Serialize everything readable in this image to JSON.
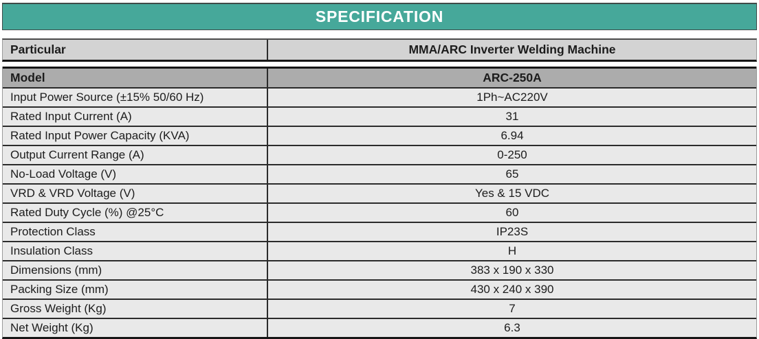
{
  "title": "SPECIFICATION",
  "header": {
    "label": "Particular",
    "value": "MMA/ARC Inverter Welding Machine"
  },
  "model": {
    "label": "Model",
    "value": "ARC-250A"
  },
  "rows": [
    {
      "label": "Input Power Source (±15% 50/60 Hz)",
      "value": "1Ph~AC220V"
    },
    {
      "label": "Rated Input Current (A)",
      "value": "31"
    },
    {
      "label": "Rated Input Power Capacity (KVA)",
      "value": "6.94"
    },
    {
      "label": "Output Current Range (A)",
      "value": "0-250"
    },
    {
      "label": "No-Load Voltage (V)",
      "value": "65"
    },
    {
      "label": "VRD & VRD Voltage (V)",
      "value": "Yes & 15 VDC"
    },
    {
      "label": "Rated Duty Cycle (%) @25°C",
      "value": "60"
    },
    {
      "label": "Protection Class",
      "value": "IP23S"
    },
    {
      "label": "Insulation Class",
      "value": "H"
    },
    {
      "label": "Dimensions (mm)",
      "value": "383 x 190 x 330"
    },
    {
      "label": "Packing Size (mm)",
      "value": "430 x 240 x 390"
    },
    {
      "label": "Gross Weight (Kg)",
      "value": "7"
    },
    {
      "label": "Net Weight (Kg)",
      "value": "6.3"
    }
  ],
  "colors": {
    "banner_bg": "#46a89a",
    "banner_text": "#ffffff",
    "header_row_bg": "#d3d3d3",
    "model_row_bg": "#acacac",
    "data_row_bg": "#e9e9e9"
  }
}
